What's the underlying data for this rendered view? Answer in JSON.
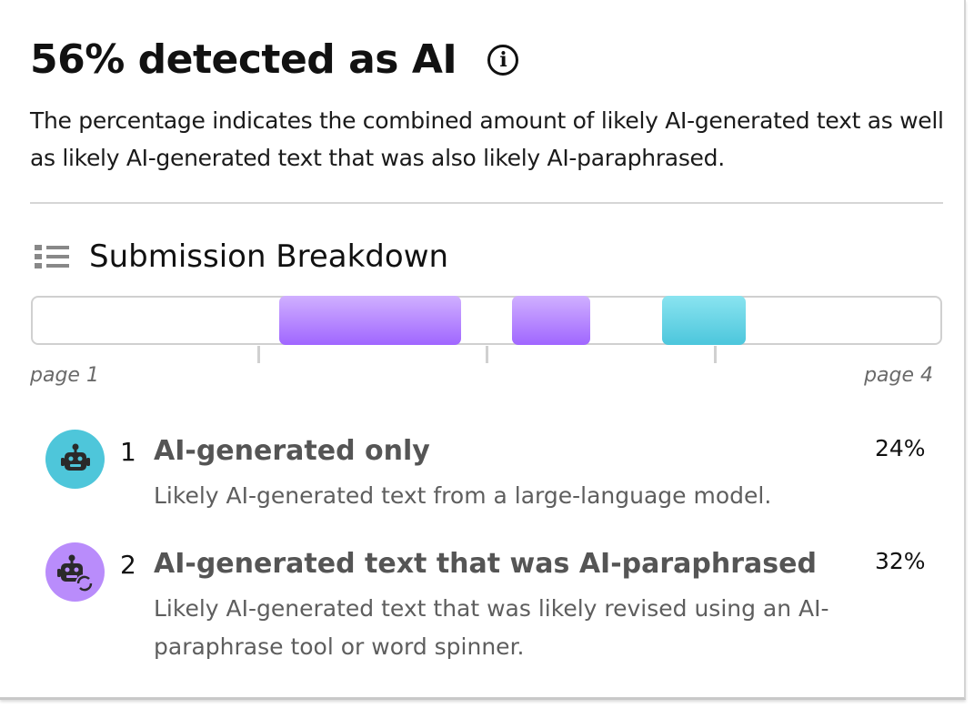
{
  "header": {
    "title": "56% detected as AI",
    "info_icon": "info-circle-icon",
    "description": "The percentage indicates the combined amount of likely AI-generated text as well as likely AI-generated text that was also likely AI-paraphrased."
  },
  "breakdown": {
    "title": "Submission Breakdown",
    "icon": "list-icon",
    "start_label": "page 1",
    "end_label": "page 4",
    "segments": [
      {
        "category": 2,
        "start_pct": 27.2,
        "end_pct": 47.2,
        "color": "#a066ff"
      },
      {
        "category": 2,
        "start_pct": 52.8,
        "end_pct": 61.4,
        "color": "#a066ff"
      },
      {
        "category": 1,
        "start_pct": 69.3,
        "end_pct": 78.4,
        "color": "#4cc6dc"
      }
    ]
  },
  "items": [
    {
      "number": "1",
      "title": "AI-generated only",
      "description": "Likely AI-generated text from a large-language model.",
      "percent": "24%",
      "icon": "robot-icon",
      "color": "#4ec6da"
    },
    {
      "number": "2",
      "title": "AI-generated text that was AI-paraphrased",
      "description": "Likely AI-generated text that was likely revised using an AI-paraphrase tool or word spinner.",
      "percent": "32%",
      "icon": "robot-paraphrase-icon",
      "color": "#b98cfb"
    }
  ]
}
